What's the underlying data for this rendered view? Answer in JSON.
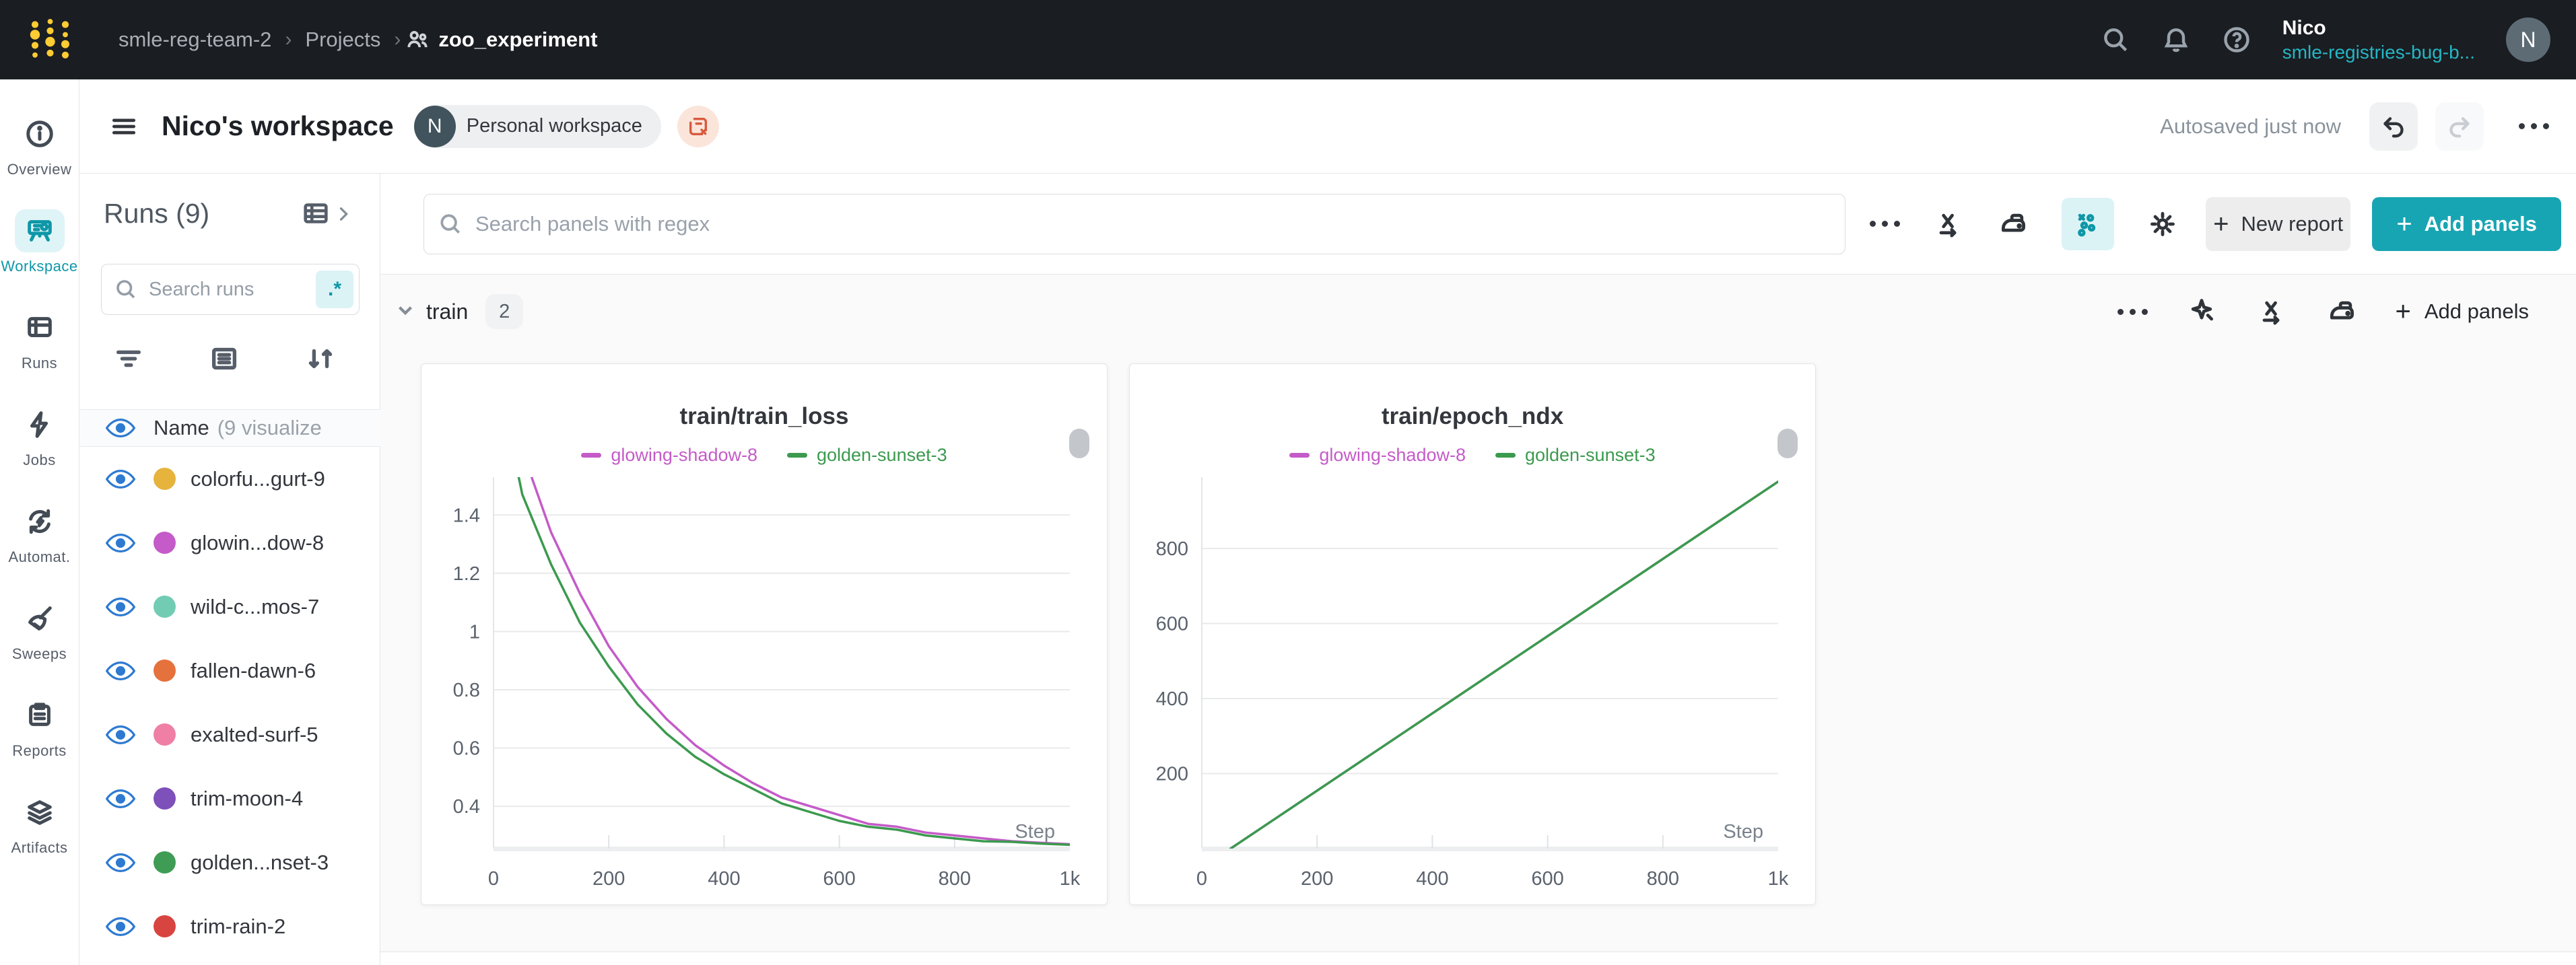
{
  "navbar": {
    "breadcrumb": [
      "smle-reg-team-2",
      "Projects",
      "zoo_experiment"
    ],
    "user_name": "Nico",
    "user_org": "smle-registries-bug-b...",
    "avatar_letter": "N"
  },
  "header": {
    "title": "Nico's workspace",
    "badge_avatar": "N",
    "badge_label": "Personal workspace",
    "autosave": "Autosaved just now"
  },
  "rail": {
    "items": [
      {
        "label": "Overview"
      },
      {
        "label": "Workspace"
      },
      {
        "label": "Runs"
      },
      {
        "label": "Jobs"
      },
      {
        "label": "Automat."
      },
      {
        "label": "Sweeps"
      },
      {
        "label": "Reports"
      },
      {
        "label": "Artifacts"
      }
    ]
  },
  "runs_panel": {
    "title": "Runs (9)",
    "search_placeholder": "Search runs",
    "regex_label": ".*",
    "name_header": "Name",
    "name_suffix": "(9 visualize",
    "runs": [
      {
        "name": "colorfu...gurt-9",
        "color": "#e6b33d"
      },
      {
        "name": "glowin...dow-8",
        "color": "#c45bc8"
      },
      {
        "name": "wild-c...mos-7",
        "color": "#72ccb3"
      },
      {
        "name": "fallen-dawn-6",
        "color": "#e5713c"
      },
      {
        "name": "exalted-surf-5",
        "color": "#ef7fa5"
      },
      {
        "name": "trim-moon-4",
        "color": "#7e50ba"
      },
      {
        "name": "golden...nset-3",
        "color": "#3f9c55"
      },
      {
        "name": "trim-rain-2",
        "color": "#d84540"
      }
    ]
  },
  "toolbar": {
    "search_placeholder": "Search panels with regex",
    "new_report_label": "New report",
    "add_panels_label": "Add panels"
  },
  "section": {
    "name": "train",
    "count": "2",
    "add_panels_label": "Add panels"
  },
  "colors": {
    "accent_teal": "#18a5b3",
    "navbar_bg": "#1a1d21",
    "eye_blue": "#2e7ad1",
    "logo_gold": "#ffcc33"
  },
  "chart_data": [
    {
      "type": "line",
      "title": "train/train_loss",
      "xlabel": "Step",
      "ylabel": "",
      "xlim": [
        0,
        1000
      ],
      "ylim": [
        0.255,
        1.53
      ],
      "grid": true,
      "legend_position": "top",
      "xticks": [
        {
          "v": 0,
          "label": "0"
        },
        {
          "v": 200,
          "label": "200"
        },
        {
          "v": 400,
          "label": "400"
        },
        {
          "v": 600,
          "label": "600"
        },
        {
          "v": 800,
          "label": "800"
        },
        {
          "v": 1000,
          "label": "1k"
        }
      ],
      "yticks": [
        {
          "v": 0.4,
          "label": "0.4"
        },
        {
          "v": 0.6,
          "label": "0.6"
        },
        {
          "v": 0.8,
          "label": "0.8"
        },
        {
          "v": 1.0,
          "label": "1"
        },
        {
          "v": 1.2,
          "label": "1.2"
        },
        {
          "v": 1.4,
          "label": "1.4"
        }
      ],
      "series": [
        {
          "name": "glowing-shadow-8",
          "color": "#c45bc8",
          "x": [
            30,
            50,
            100,
            150,
            200,
            250,
            300,
            350,
            400,
            450,
            500,
            550,
            600,
            650,
            700,
            750,
            800,
            850,
            900,
            950,
            1000
          ],
          "y": [
            1.75,
            1.62,
            1.34,
            1.13,
            0.95,
            0.81,
            0.7,
            0.61,
            0.54,
            0.48,
            0.43,
            0.4,
            0.37,
            0.34,
            0.33,
            0.31,
            0.3,
            0.29,
            0.28,
            0.275,
            0.27
          ]
        },
        {
          "name": "golden-sunset-3",
          "color": "#3b9a4e",
          "x": [
            30,
            50,
            100,
            150,
            200,
            250,
            300,
            350,
            400,
            450,
            500,
            550,
            600,
            650,
            700,
            750,
            800,
            850,
            900,
            950,
            1000
          ],
          "y": [
            1.66,
            1.47,
            1.23,
            1.03,
            0.88,
            0.75,
            0.65,
            0.57,
            0.51,
            0.46,
            0.41,
            0.38,
            0.35,
            0.33,
            0.32,
            0.3,
            0.29,
            0.28,
            0.278,
            0.272,
            0.268
          ]
        }
      ]
    },
    {
      "type": "line",
      "title": "train/epoch_ndx",
      "xlabel": "Step",
      "ylabel": "",
      "xlim": [
        0,
        1000
      ],
      "ylim": [
        0,
        990
      ],
      "grid": true,
      "legend_position": "top",
      "xticks": [
        {
          "v": 0,
          "label": "0"
        },
        {
          "v": 200,
          "label": "200"
        },
        {
          "v": 400,
          "label": "400"
        },
        {
          "v": 600,
          "label": "600"
        },
        {
          "v": 800,
          "label": "800"
        },
        {
          "v": 1000,
          "label": "1k"
        }
      ],
      "yticks": [
        {
          "v": 200,
          "label": "200"
        },
        {
          "v": 400,
          "label": "400"
        },
        {
          "v": 600,
          "label": "600"
        },
        {
          "v": 800,
          "label": "800"
        }
      ],
      "series": [
        {
          "name": "glowing-shadow-8",
          "color": "#c45bc8",
          "x": [
            50,
            1000
          ],
          "y": [
            0,
            978
          ]
        },
        {
          "name": "golden-sunset-3",
          "color": "#3b9a4e",
          "x": [
            50,
            1000
          ],
          "y": [
            0,
            978
          ]
        }
      ]
    }
  ]
}
